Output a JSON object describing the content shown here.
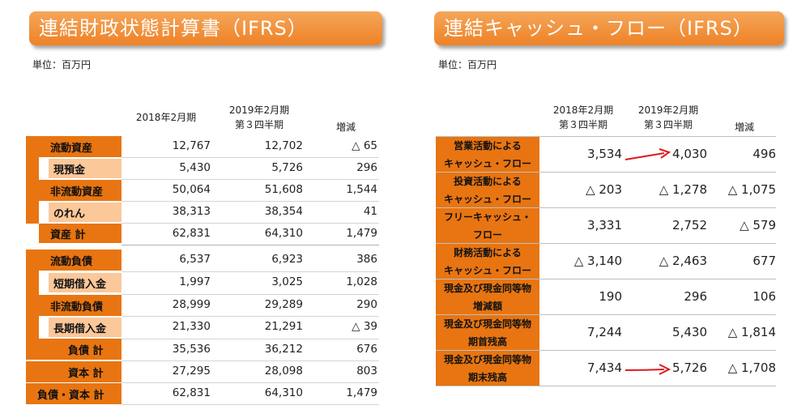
{
  "bs": {
    "title": "連結財政状態計算書（IFRS）",
    "unit": "単位：百万円",
    "col1": "2018年2月期",
    "col2_line1": "2019年2月期",
    "col2_line2": "第３四半期",
    "col3": "増減",
    "rows": [
      {
        "label": "流動資産",
        "v1": "12,767",
        "v2": "12,702",
        "v3": "△ 65"
      },
      {
        "label": "現預金",
        "v1": "5,430",
        "v2": "5,726",
        "v3": "296"
      },
      {
        "label": "非流動資産",
        "v1": "50,064",
        "v2": "51,608",
        "v3": "1,544"
      },
      {
        "label": "のれん",
        "v1": "38,313",
        "v2": "38,354",
        "v3": "41"
      },
      {
        "label": "資産 計",
        "v1": "62,831",
        "v2": "64,310",
        "v3": "1,479"
      },
      {
        "label": "流動負債",
        "v1": "6,537",
        "v2": "6,923",
        "v3": "386"
      },
      {
        "label": "短期借入金",
        "v1": "1,997",
        "v2": "3,025",
        "v3": "1,028"
      },
      {
        "label": "非流動負債",
        "v1": "28,999",
        "v2": "29,289",
        "v3": "290"
      },
      {
        "label": "長期借入金",
        "v1": "21,330",
        "v2": "21,291",
        "v3": "△ 39"
      },
      {
        "label": "負債 計",
        "v1": "35,536",
        "v2": "36,212",
        "v3": "676"
      },
      {
        "label": "資本 計",
        "v1": "27,295",
        "v2": "28,098",
        "v3": "803"
      },
      {
        "label": "負債・資本 計",
        "v1": "62,831",
        "v2": "64,310",
        "v3": "1,479"
      }
    ]
  },
  "cf": {
    "title": "連結キャッシュ・フロー（IFRS）",
    "unit": "単位：百万円",
    "col1_line1": "2018年2月期",
    "col1_line2": "第３四半期",
    "col2_line1": "2019年2月期",
    "col2_line2": "第３四半期",
    "col3": "増減",
    "rows": [
      {
        "l1": "営業活動による",
        "l2": "キャッシュ・フロー",
        "v1": "3,534",
        "v2": "4,030",
        "v3": "496"
      },
      {
        "l1": "投資活動による",
        "l2": "キャッシュ・フロー",
        "v1": "△ 203",
        "v2": "△ 1,278",
        "v3": "△ 1,075"
      },
      {
        "l1": "フリーキャッシュ・",
        "l2": "フロー",
        "v1": "3,331",
        "v2": "2,752",
        "v3": "△ 579"
      },
      {
        "l1": "財務活動による",
        "l2": "キャッシュ・フロー",
        "v1": "△ 3,140",
        "v2": "△ 2,463",
        "v3": "677"
      },
      {
        "l1": "現金及び現金同等物",
        "l2": "増減額",
        "v1": "190",
        "v2": "296",
        "v3": "106"
      },
      {
        "l1": "現金及び現金同等物",
        "l2": "期首残高",
        "v1": "7,244",
        "v2": "5,430",
        "v3": "△ 1,814"
      },
      {
        "l1": "現金及び現金同等物",
        "l2": "期末残高",
        "v1": "7,434",
        "v2": "5,726",
        "v3": "△ 1,708"
      }
    ]
  },
  "colors": {
    "accent": "#e87511",
    "accent_light": "#fbc89a",
    "arrow": "#e0191f"
  }
}
